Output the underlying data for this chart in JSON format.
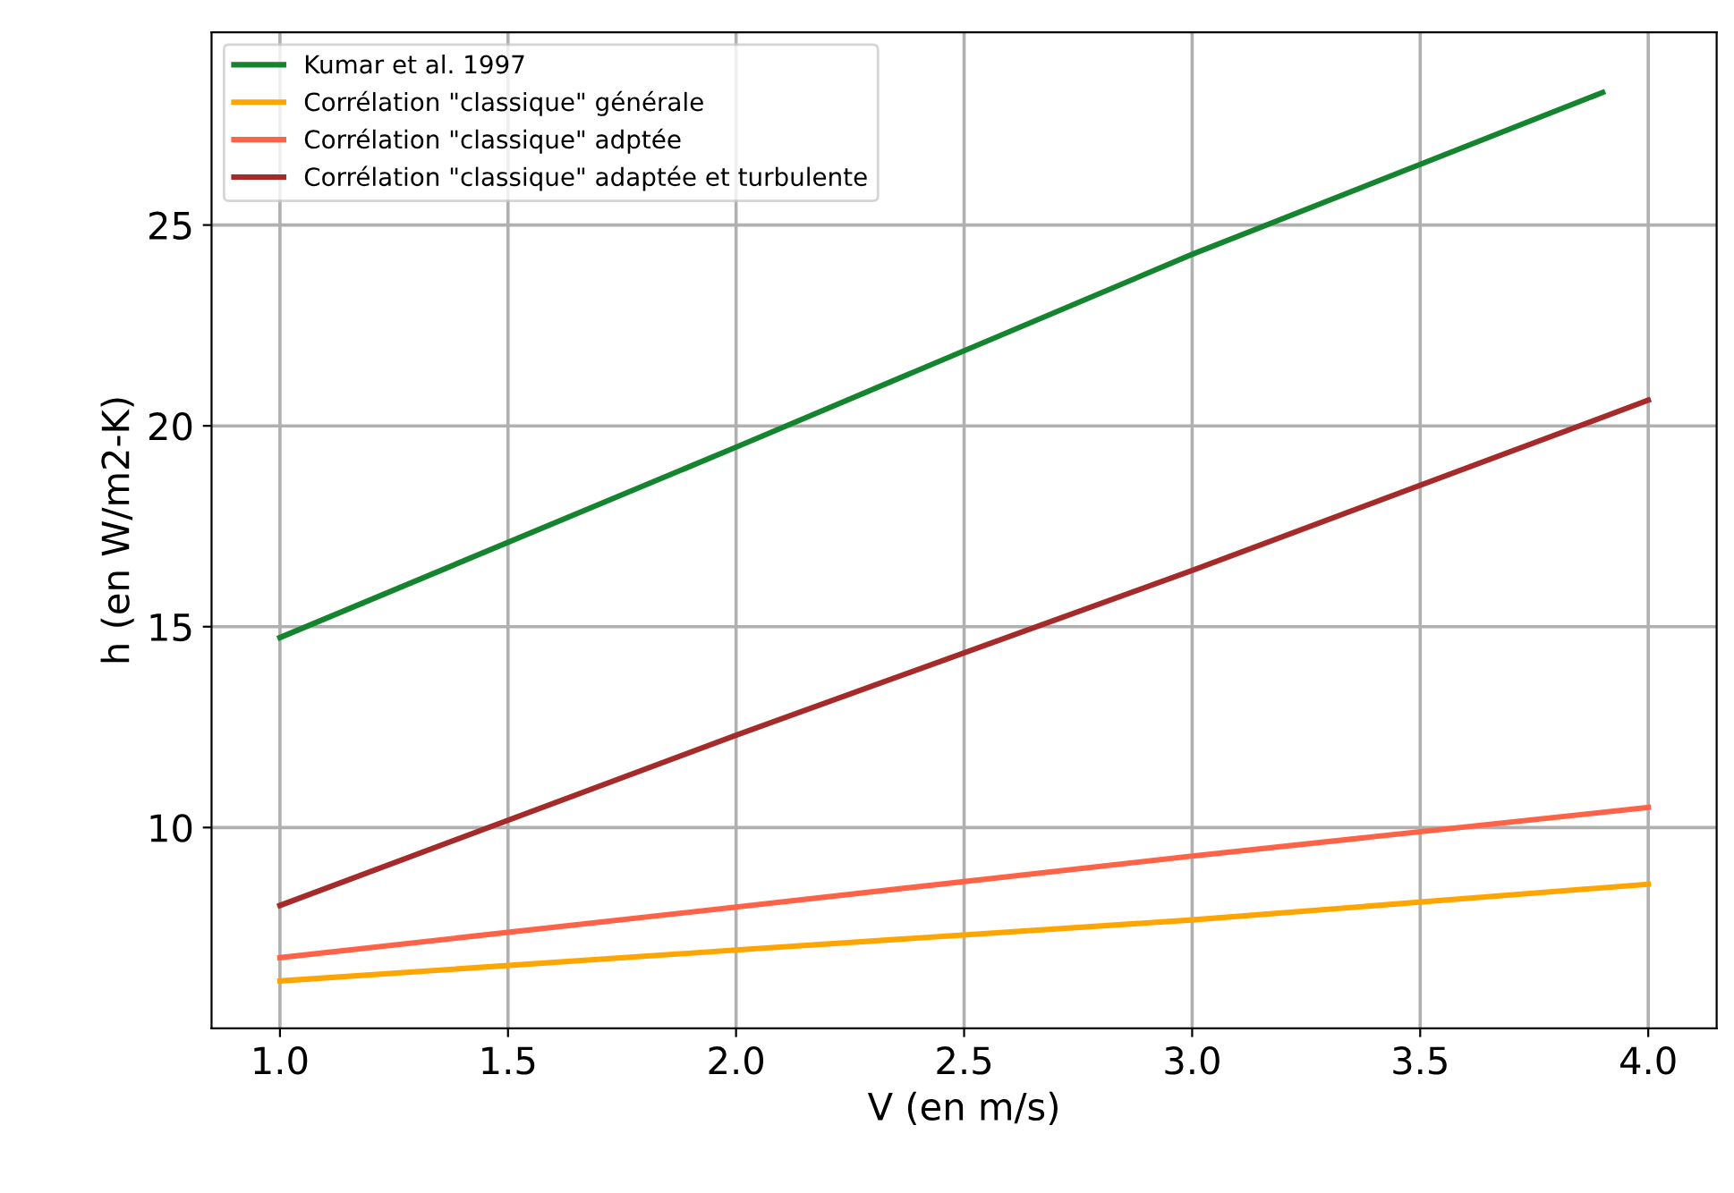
{
  "chart_data": {
    "type": "line",
    "xlabel": "V (en m/s)",
    "ylabel": "h (en W/m2-K)",
    "xlim": [
      0.85,
      4.15
    ],
    "ylim": [
      5.0,
      29.8
    ],
    "xticks": [
      {
        "value": 1.0,
        "label": "1.0"
      },
      {
        "value": 1.5,
        "label": "1.5"
      },
      {
        "value": 2.0,
        "label": "2.0"
      },
      {
        "value": 2.5,
        "label": "2.5"
      },
      {
        "value": 3.0,
        "label": "3.0"
      },
      {
        "value": 3.5,
        "label": "3.5"
      },
      {
        "value": 4.0,
        "label": "4.0"
      }
    ],
    "yticks": [
      10,
      15,
      20,
      25
    ],
    "grid": true,
    "legend": "top left",
    "line_style": "solid",
    "marker": "none",
    "series": [
      {
        "name": "Kumar et al. 1997",
        "color": "#15842f",
        "x": [
          1.0,
          2.0,
          3.0,
          3.9
        ],
        "values": [
          14.73,
          19.47,
          24.27,
          28.3
        ]
      },
      {
        "name": "Corrélation \"classique\" générale",
        "color": "#ffa500",
        "x": [
          1.0,
          2.0,
          3.0,
          4.0
        ],
        "values": [
          6.18,
          6.95,
          7.7,
          8.59
        ]
      },
      {
        "name": "Corrélation \"classique\" adptée",
        "color": "#ff6347",
        "x": [
          1.0,
          2.0,
          3.0,
          4.0
        ],
        "values": [
          6.76,
          8.02,
          9.29,
          10.5
        ]
      },
      {
        "name": "Corrélation \"classique\" adaptée et turbulente",
        "color": "#a52a2a",
        "x": [
          1.0,
          2.0,
          3.0,
          4.0
        ],
        "values": [
          8.06,
          12.3,
          16.4,
          20.64
        ]
      }
    ]
  }
}
